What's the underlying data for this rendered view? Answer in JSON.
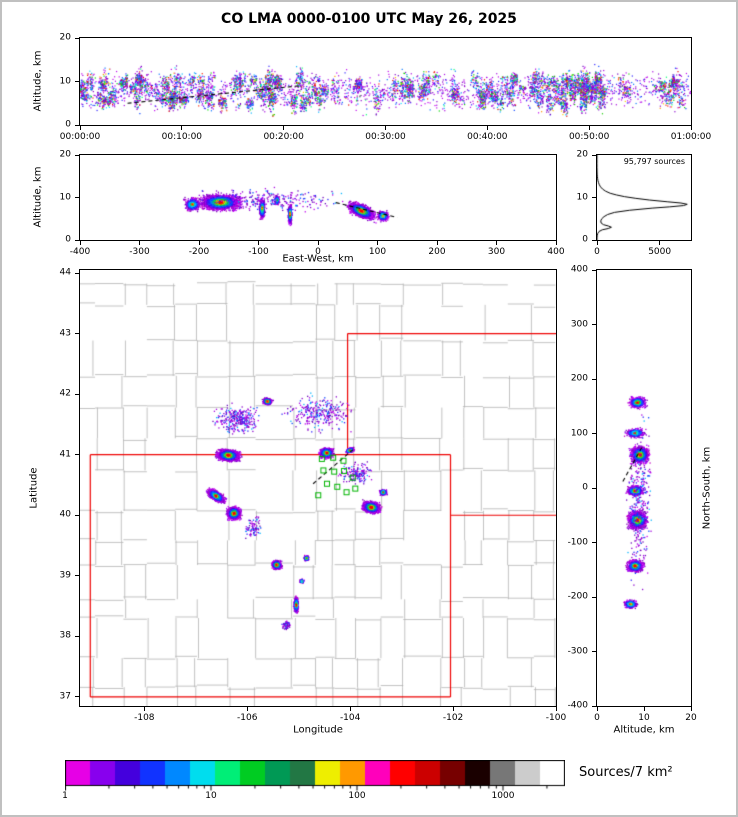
{
  "title": "CO LMA 0000-0100 UTC May 26, 2025",
  "chart_data": [
    {
      "id": "time_height",
      "type": "scatter",
      "xlabel": "",
      "ylabel": "Altitude, km",
      "xlim": [
        0,
        3600
      ],
      "ylim": [
        0,
        20
      ],
      "xtick_vals": [
        0,
        600,
        1200,
        1800,
        2400,
        3000,
        3600
      ],
      "xtick_labels": [
        "00:00:00",
        "00:10:00",
        "00:20:00",
        "00:30:00",
        "00:40:00",
        "00:50:00",
        "01:00:00"
      ],
      "ytick_vals": [
        0,
        10,
        20
      ],
      "ytick_labels": [
        "0",
        "10",
        "20"
      ],
      "streak_count": 190,
      "background_points": 1700,
      "track": [
        [
          280,
          5.0
        ],
        [
          1290,
          9.0
        ]
      ]
    },
    {
      "id": "east_west",
      "type": "scatter",
      "xlabel": "East-West, km",
      "ylabel": "Altitude, km",
      "xlim": [
        -400,
        400
      ],
      "ylim": [
        0,
        20
      ],
      "xtick_vals": [
        -400,
        -300,
        -200,
        -100,
        0,
        100,
        200,
        300,
        400
      ],
      "xtick_labels": [
        "-400",
        "-300",
        "-200",
        "-100",
        "0",
        "100",
        "200",
        "300",
        "400"
      ],
      "ytick_vals": [
        0,
        10,
        20
      ],
      "ytick_labels": [
        "0",
        "10",
        "20"
      ],
      "clusters": [
        {
          "x": -165,
          "y": 9.0,
          "sx": 42,
          "sy": 2.3,
          "n": 2700,
          "hot": 1.05,
          "rot": 0
        },
        {
          "x": -212,
          "y": 8.5,
          "sx": 16,
          "sy": 2.0,
          "n": 450,
          "hot": 0.5,
          "rot": 0
        },
        {
          "x": -95,
          "y": 7.5,
          "sx": 6,
          "sy": 3.1,
          "n": 480,
          "hot": 0.6,
          "rot": 0
        },
        {
          "x": -70,
          "y": 9.5,
          "sx": 5,
          "sy": 1.3,
          "n": 160,
          "hot": 0.35,
          "rot": 0
        },
        {
          "x": -48,
          "y": 6.2,
          "sx": 4,
          "sy": 2.8,
          "n": 430,
          "hot": 0.85,
          "rot": 0
        },
        {
          "x": 72,
          "y": 7.0,
          "sx": 27,
          "sy": 1.9,
          "n": 1800,
          "hot": 1.05,
          "rot": -3
        },
        {
          "x": 108,
          "y": 5.8,
          "sx": 12,
          "sy": 1.5,
          "n": 350,
          "hot": 0.5,
          "rot": 0
        },
        {
          "x": -80,
          "y": 9.5,
          "sx": 150,
          "sy": 3.2,
          "n": 260,
          "hot": 0,
          "rot": 0
        }
      ],
      "track": [
        [
          30,
          8.8
        ],
        [
          133,
          5.3
        ]
      ]
    },
    {
      "id": "altitude_histogram",
      "type": "line",
      "annotation": "95,797 sources",
      "xlim": [
        0,
        7500
      ],
      "ylim": [
        0,
        20
      ],
      "xtick_vals": [
        0,
        5000
      ],
      "xtick_labels": [
        "0",
        "5000"
      ],
      "ytick_vals": [
        0,
        10,
        20
      ],
      "ytick_labels": [
        "0",
        "10",
        "20"
      ],
      "profile_alt_count": [
        [
          0,
          0
        ],
        [
          0.5,
          5
        ],
        [
          1,
          15
        ],
        [
          1.5,
          50
        ],
        [
          2,
          160
        ],
        [
          2.4,
          420
        ],
        [
          2.7,
          900
        ],
        [
          3,
          1150
        ],
        [
          3.3,
          900
        ],
        [
          3.6,
          520
        ],
        [
          4,
          330
        ],
        [
          4.5,
          300
        ],
        [
          5,
          380
        ],
        [
          5.5,
          560
        ],
        [
          6,
          850
        ],
        [
          6.5,
          1400
        ],
        [
          7,
          2600
        ],
        [
          7.5,
          4400
        ],
        [
          7.8,
          5800
        ],
        [
          8.1,
          6900
        ],
        [
          8.4,
          7200
        ],
        [
          8.7,
          6700
        ],
        [
          9,
          5600
        ],
        [
          9.4,
          4200
        ],
        [
          9.8,
          3100
        ],
        [
          10.2,
          2200
        ],
        [
          10.6,
          1550
        ],
        [
          11,
          1050
        ],
        [
          11.5,
          680
        ],
        [
          12,
          440
        ],
        [
          12.5,
          285
        ],
        [
          13,
          185
        ],
        [
          13.5,
          120
        ],
        [
          14,
          75
        ],
        [
          14.5,
          45
        ],
        [
          15,
          28
        ],
        [
          15.5,
          16
        ],
        [
          16,
          9
        ],
        [
          17,
          3
        ],
        [
          18,
          1
        ],
        [
          19,
          0
        ],
        [
          20,
          0
        ]
      ]
    },
    {
      "id": "plan_view",
      "type": "scatter",
      "xlabel": "Longitude",
      "ylabel": "Latitude",
      "xlim": [
        -109.25,
        -100.0
      ],
      "ylim": [
        36.85,
        44.05
      ],
      "xtick_vals": [
        -108,
        -106,
        -104,
        -102,
        -100
      ],
      "xtick_labels": [
        "-108",
        "-106",
        "-104",
        "-102",
        "-100"
      ],
      "ytick_vals": [
        37,
        38,
        39,
        40,
        41,
        42,
        43,
        44
      ],
      "ytick_labels": [
        "37",
        "38",
        "39",
        "40",
        "41",
        "42",
        "43",
        "44"
      ],
      "county_line_color": "#b3b3b3",
      "state_line_color": "#ee0000",
      "station_color": "#00b400",
      "state_segments": [
        [
          [
            -109.05,
            37
          ],
          [
            -102.05,
            37
          ]
        ],
        [
          [
            -102.05,
            37
          ],
          [
            -102.05,
            41
          ]
        ],
        [
          [
            -102.05,
            41
          ],
          [
            -109.05,
            41
          ]
        ],
        [
          [
            -109.05,
            41
          ],
          [
            -109.05,
            37
          ]
        ],
        [
          [
            -104.05,
            41
          ],
          [
            -104.05,
            43
          ]
        ],
        [
          [
            -104.05,
            43
          ],
          [
            -100.0,
            43
          ]
        ],
        [
          [
            -102.05,
            40
          ],
          [
            -100.0,
            40
          ]
        ]
      ],
      "clusters": [
        {
          "x": -106.38,
          "y": 41.0,
          "sx": 0.27,
          "sy": 0.115,
          "n": 2600,
          "hot": 1.05,
          "rot": -4
        },
        {
          "x": -106.62,
          "y": 40.33,
          "sx": 0.23,
          "sy": 0.095,
          "n": 1100,
          "hot": 0.75,
          "rot": -28
        },
        {
          "x": -106.27,
          "y": 40.04,
          "sx": 0.16,
          "sy": 0.13,
          "n": 1600,
          "hot": 1.0,
          "rot": 0
        },
        {
          "x": -105.62,
          "y": 41.89,
          "sx": 0.11,
          "sy": 0.065,
          "n": 450,
          "hot": 0.95,
          "rot": -12
        },
        {
          "x": -104.47,
          "y": 41.04,
          "sx": 0.17,
          "sy": 0.105,
          "n": 900,
          "hot": 0.9,
          "rot": 0
        },
        {
          "x": -104.02,
          "y": 41.08,
          "sx": 0.11,
          "sy": 0.05,
          "n": 230,
          "hot": 0.45,
          "rot": 18
        },
        {
          "x": -103.6,
          "y": 40.14,
          "sx": 0.21,
          "sy": 0.115,
          "n": 1900,
          "hot": 1.1,
          "rot": -8
        },
        {
          "x": -103.37,
          "y": 40.39,
          "sx": 0.09,
          "sy": 0.06,
          "n": 300,
          "hot": 0.5,
          "rot": 0
        },
        {
          "x": -105.44,
          "y": 39.19,
          "sx": 0.115,
          "sy": 0.09,
          "n": 850,
          "hot": 0.95,
          "rot": 0
        },
        {
          "x": -104.86,
          "y": 39.3,
          "sx": 0.06,
          "sy": 0.05,
          "n": 220,
          "hot": 0.45,
          "rot": 0
        },
        {
          "x": -105.06,
          "y": 38.53,
          "sx": 0.06,
          "sy": 0.16,
          "n": 430,
          "hot": 0.75,
          "rot": 0
        },
        {
          "x": -104.95,
          "y": 38.92,
          "sx": 0.05,
          "sy": 0.045,
          "n": 120,
          "hot": 0.3,
          "rot": 0
        },
        {
          "x": -106.2,
          "y": 41.6,
          "sx": 0.55,
          "sy": 0.3,
          "n": 320,
          "hot": 0,
          "rot": 0
        },
        {
          "x": -104.6,
          "y": 41.7,
          "sx": 0.8,
          "sy": 0.35,
          "n": 300,
          "hot": 0,
          "rot": 0
        },
        {
          "x": -103.9,
          "y": 40.7,
          "sx": 0.4,
          "sy": 0.22,
          "n": 170,
          "hot": 0.1,
          "rot": 0
        },
        {
          "x": -105.9,
          "y": 39.8,
          "sx": 0.25,
          "sy": 0.22,
          "n": 90,
          "hot": 0,
          "rot": 0
        },
        {
          "x": -105.25,
          "y": 38.2,
          "sx": 0.1,
          "sy": 0.1,
          "n": 70,
          "hot": 0.2,
          "rot": 0
        }
      ],
      "stations": [
        [
          -104.55,
          40.93
        ],
        [
          -104.33,
          40.95
        ],
        [
          -104.13,
          40.9
        ],
        [
          -104.52,
          40.74
        ],
        [
          -104.31,
          40.72
        ],
        [
          -104.12,
          40.73
        ],
        [
          -103.95,
          40.62
        ],
        [
          -104.45,
          40.52
        ],
        [
          -104.25,
          40.47
        ],
        [
          -104.07,
          40.38
        ],
        [
          -103.9,
          40.44
        ],
        [
          -104.62,
          40.33
        ]
      ],
      "track": [
        [
          -104.72,
          40.52
        ],
        [
          -103.95,
          41.08
        ]
      ]
    },
    {
      "id": "north_south",
      "type": "scatter",
      "xlabel": "Altitude, km",
      "ylabel": "North-South, km",
      "xlim": [
        0,
        20
      ],
      "ylim": [
        -400,
        400
      ],
      "xtick_vals": [
        0,
        10,
        20
      ],
      "xtick_labels": [
        "0",
        "10",
        "20"
      ],
      "ytick_vals": [
        400,
        300,
        200,
        100,
        0,
        -100,
        -200,
        -300,
        -400
      ],
      "ytick_labels": [
        "400",
        "300",
        "200",
        "100",
        "0",
        "-100",
        "-200",
        "-300",
        "-400"
      ],
      "clusters": [
        {
          "x": 8.5,
          "y": 158,
          "sx": 2.3,
          "sy": 13,
          "n": 520,
          "hot": 0.85,
          "rot": 0
        },
        {
          "x": 8.0,
          "y": 102,
          "sx": 2.5,
          "sy": 11,
          "n": 380,
          "hot": 0.45,
          "rot": 0
        },
        {
          "x": 9.0,
          "y": 62,
          "sx": 2.4,
          "sy": 19,
          "n": 1500,
          "hot": 1.0,
          "rot": 0
        },
        {
          "x": 8.0,
          "y": -4,
          "sx": 2.2,
          "sy": 12,
          "n": 650,
          "hot": 0.8,
          "rot": 0
        },
        {
          "x": 8.5,
          "y": -58,
          "sx": 2.5,
          "sy": 20,
          "n": 1700,
          "hot": 1.1,
          "rot": 0
        },
        {
          "x": 8.0,
          "y": -142,
          "sx": 2.2,
          "sy": 14,
          "n": 800,
          "hot": 0.9,
          "rot": 0
        },
        {
          "x": 7.0,
          "y": -212,
          "sx": 1.8,
          "sy": 10,
          "n": 330,
          "hot": 0.55,
          "rot": 0
        },
        {
          "x": 9.0,
          "y": -20,
          "sx": 3.5,
          "sy": 190,
          "n": 330,
          "hot": 0,
          "rot": 0
        }
      ],
      "track": [
        [
          5.5,
          12
        ],
        [
          9.5,
          74
        ]
      ]
    },
    {
      "id": "colorbar",
      "type": "colorbar",
      "label": "Sources/7 km²",
      "scale": "log",
      "range": [
        1,
        2660
      ],
      "tick_values": [
        1,
        10,
        100,
        1000
      ],
      "tick_labels": [
        "1",
        "10",
        "100",
        "1000"
      ],
      "colors": [
        "#e600e6",
        "#8800ee",
        "#4400dd",
        "#1133ff",
        "#0088ff",
        "#00ddee",
        "#00ee77",
        "#00cc22",
        "#009955",
        "#227744",
        "#eeee00",
        "#ff9900",
        "#ff00bb",
        "#ff0000",
        "#cc0000",
        "#770000",
        "#1a0000",
        "#777777",
        "#cccccc",
        "#ffffff"
      ]
    }
  ]
}
